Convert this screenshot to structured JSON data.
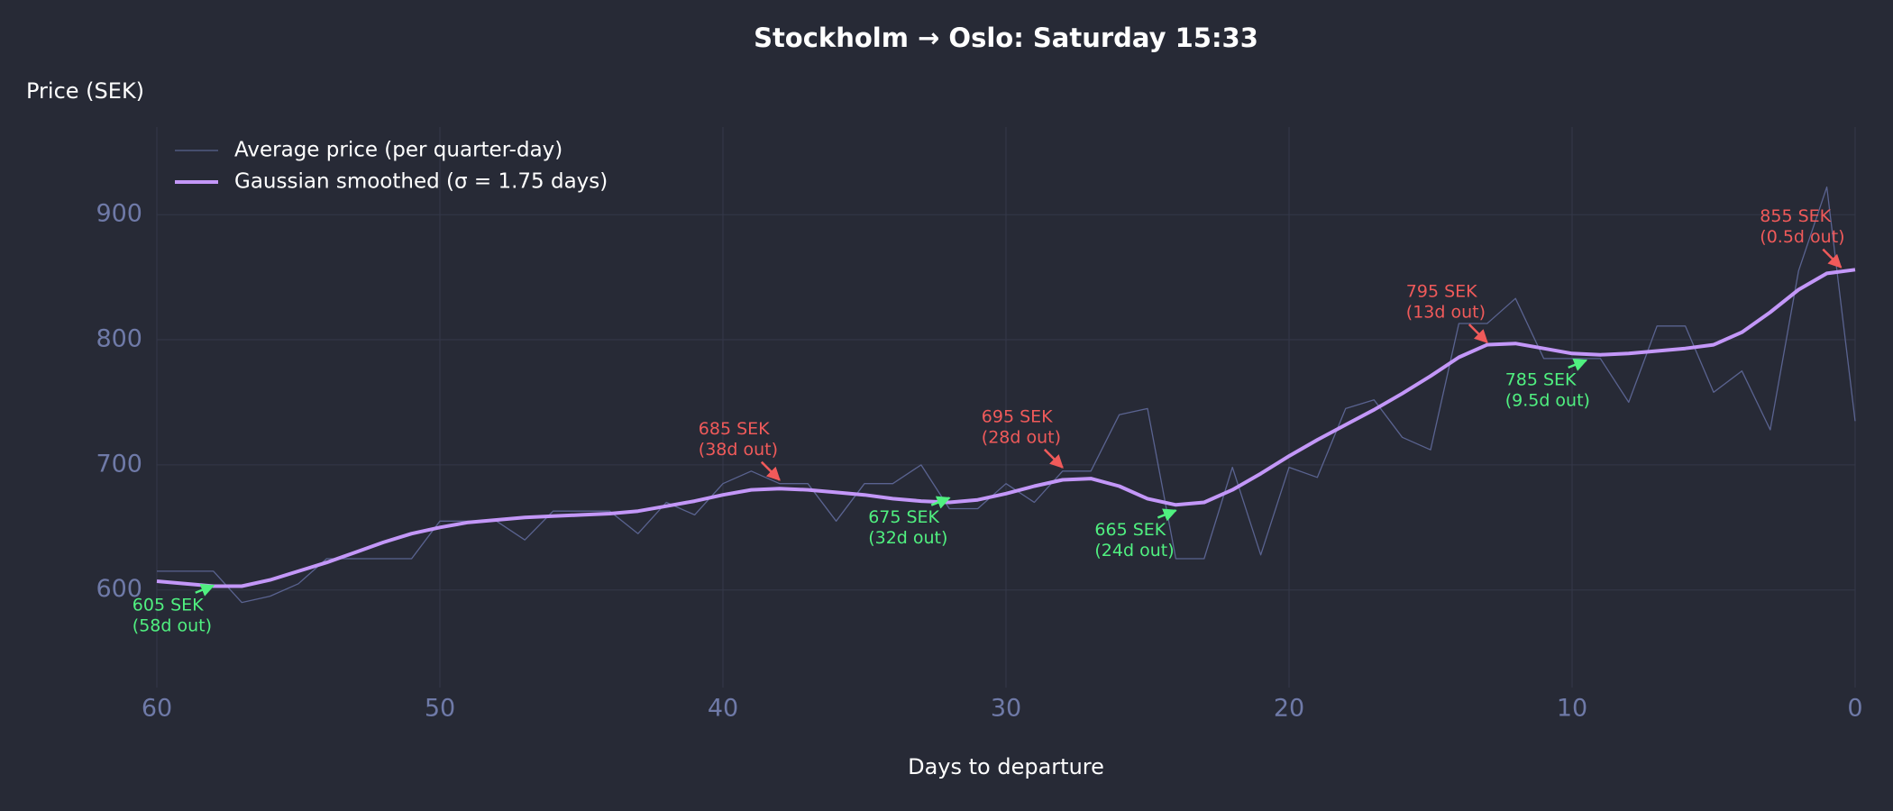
{
  "chart_data": {
    "type": "line",
    "title": "Stockholm → Oslo: Saturday 15:33",
    "x_label": "Days to departure",
    "y_label": "Price (SEK)",
    "xlim": [
      60,
      0
    ],
    "ylim": [
      522,
      970
    ],
    "xticks": [
      60,
      50,
      40,
      30,
      20,
      10,
      0
    ],
    "yticks": [
      600,
      700,
      800,
      900
    ],
    "grid": true,
    "legend": "upper left",
    "x": [
      60,
      59,
      58,
      57,
      56,
      55,
      54,
      53,
      52,
      51,
      50,
      49,
      48,
      47,
      46,
      45,
      44,
      43,
      42,
      41,
      40,
      39,
      38,
      37,
      36,
      35,
      34,
      33,
      32,
      31,
      30,
      29,
      28,
      27,
      26,
      25,
      24,
      23,
      22,
      21,
      20,
      19,
      18,
      17,
      16,
      15,
      14,
      13,
      12,
      11,
      10,
      9,
      8,
      7,
      6,
      5,
      4,
      3,
      2,
      1,
      0
    ],
    "series": [
      {
        "name": "Average price (per quarter-day)",
        "color": "#5a6390",
        "width": 1.3,
        "values": [
          615,
          615,
          615,
          590,
          595,
          605,
          625,
          625,
          625,
          625,
          655,
          655,
          655,
          640,
          663,
          663,
          663,
          645,
          670,
          660,
          685,
          695,
          685,
          685,
          655,
          685,
          685,
          700,
          665,
          665,
          685,
          670,
          695,
          695,
          740,
          745,
          625,
          625,
          698,
          628,
          698,
          690,
          745,
          752,
          722,
          712,
          813,
          813,
          833,
          785,
          785,
          785,
          750,
          811,
          811,
          758,
          775,
          728,
          855,
          922,
          735
        ]
      },
      {
        "name": "Gaussian smoothed (σ = 1.75 days)",
        "color": "#c397f8",
        "width": 4,
        "values": [
          607,
          605,
          603,
          603,
          608,
          615,
          622,
          630,
          638,
          645,
          650,
          654,
          656,
          658,
          659,
          660,
          661,
          663,
          667,
          671,
          676,
          680,
          681,
          680,
          678,
          676,
          673,
          671,
          670,
          672,
          677,
          683,
          688,
          689,
          683,
          673,
          668,
          670,
          680,
          693,
          707,
          720,
          732,
          744,
          757,
          771,
          786,
          796,
          797,
          793,
          789,
          788,
          789,
          791,
          793,
          796,
          806,
          822,
          840,
          853,
          856
        ]
      }
    ],
    "annotations": [
      {
        "kind": "trough",
        "color": "#50f080",
        "x": 58,
        "y": 605,
        "lines": [
          "605 SEK",
          "(58d out)"
        ]
      },
      {
        "kind": "peak",
        "color": "#f05a5a",
        "x": 38,
        "y": 685,
        "lines": [
          "685 SEK",
          "(38d out)"
        ]
      },
      {
        "kind": "trough",
        "color": "#50f080",
        "x": 32,
        "y": 675,
        "lines": [
          "675 SEK",
          "(32d out)"
        ]
      },
      {
        "kind": "peak",
        "color": "#f05a5a",
        "x": 28,
        "y": 695,
        "lines": [
          "695 SEK",
          "(28d out)"
        ]
      },
      {
        "kind": "trough",
        "color": "#50f080",
        "x": 24,
        "y": 665,
        "lines": [
          "665 SEK",
          "(24d out)"
        ]
      },
      {
        "kind": "peak",
        "color": "#f05a5a",
        "x": 13,
        "y": 795,
        "lines": [
          "795 SEK",
          "(13d out)"
        ]
      },
      {
        "kind": "trough",
        "color": "#50f080",
        "x": 9.5,
        "y": 785,
        "lines": [
          "785 SEK",
          "(9.5d out)"
        ]
      },
      {
        "kind": "peak",
        "color": "#f05a5a",
        "x": 0.5,
        "y": 855,
        "lines": [
          "855 SEK",
          "(0.5d out)"
        ]
      }
    ]
  }
}
